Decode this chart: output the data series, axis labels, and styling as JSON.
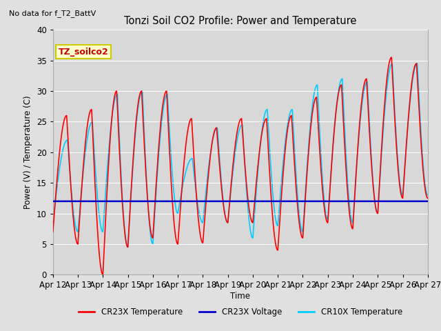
{
  "title": "Tonzi Soil CO2 Profile: Power and Temperature",
  "top_left_note": "No data for f_T2_BattV",
  "ylabel": "Power (V) / Temperature (C)",
  "xlabel": "Time",
  "ylim": [
    0,
    40
  ],
  "xlim": [
    0,
    15
  ],
  "fig_bg_color": "#e0e0e0",
  "plot_bg_color": "#d8d8d8",
  "legend_colors": [
    "#ff0000",
    "#0000cc",
    "#00ccff"
  ],
  "box_label": "TZ_soilco2",
  "box_bg": "#ffffcc",
  "box_border": "#cccc00",
  "cr23x_voltage": 12.0,
  "x_tick_labels": [
    "Apr 12",
    "Apr 13",
    "Apr 14",
    "Apr 15",
    "Apr 16",
    "Apr 17",
    "Apr 18",
    "Apr 19",
    "Apr 20",
    "Apr 21",
    "Apr 22",
    "Apr 23",
    "Apr 24",
    "Apr 25",
    "Apr 26",
    "Apr 27"
  ],
  "num_days": 15,
  "cr23x_peaks": [
    26,
    27,
    30,
    30,
    30,
    25.5,
    24,
    25.5,
    25.5,
    26,
    29,
    31,
    32,
    35.5,
    34.5
  ],
  "cr23x_troughs": [
    7,
    5,
    0,
    4.5,
    6,
    5,
    5.2,
    8.5,
    8.5,
    4,
    6,
    8.5,
    7.5,
    10,
    12.5
  ],
  "cr10x_peaks": [
    22,
    25,
    29.5,
    30,
    29.5,
    19,
    24,
    24.5,
    27,
    27,
    31,
    32,
    31.5,
    34.5,
    34.5
  ],
  "cr10x_troughs": [
    8.5,
    7,
    7,
    4.5,
    5,
    10,
    8.5,
    8.5,
    6,
    8,
    7,
    9,
    8.5,
    10,
    13
  ]
}
